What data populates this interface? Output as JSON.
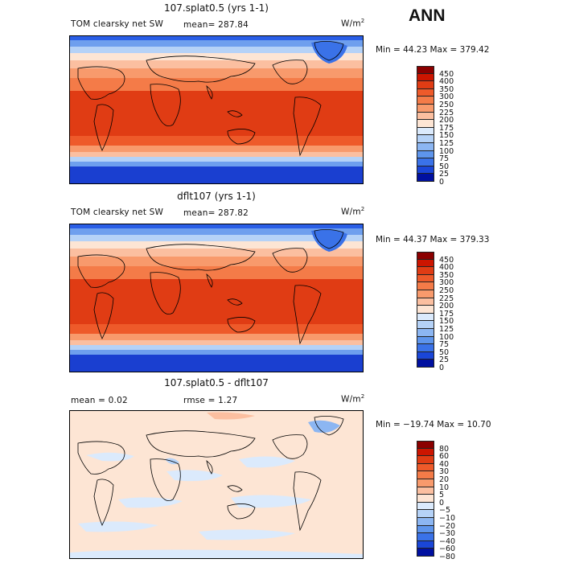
{
  "season": "ANN",
  "units_base": "W/m",
  "units_exp": "2",
  "panels": [
    {
      "title": "107.splat0.5 (yrs 1-1)",
      "variable": "TOM clearsky net SW",
      "stat_text": "mean= 287.84",
      "minmax": "Min =  44.23 Max = 379.42",
      "colorbar_labels": [
        "450",
        "400",
        "350",
        "300",
        "250",
        "225",
        "200",
        "175",
        "150",
        "125",
        "100",
        "75",
        "50",
        "25",
        "0"
      ],
      "colorbar_colors": [
        "#8b0000",
        "#cc1500",
        "#e03c14",
        "#ee5a2a",
        "#f47b48",
        "#f89a6c",
        "#fbbfa0",
        "#fde5d4",
        "#dbeafc",
        "#b5d2f7",
        "#8cb6f2",
        "#5e95ec",
        "#3a72e8",
        "#1a46d8",
        "#0010a0"
      ]
    },
    {
      "title": "dflt107 (yrs 1-1)",
      "variable": "TOM clearsky net SW",
      "stat_text": "mean= 287.82",
      "minmax": "Min =  44.37 Max = 379.33",
      "colorbar_labels": [
        "450",
        "400",
        "350",
        "300",
        "250",
        "225",
        "200",
        "175",
        "150",
        "125",
        "100",
        "75",
        "50",
        "25",
        "0"
      ],
      "colorbar_colors": [
        "#8b0000",
        "#cc1500",
        "#e03c14",
        "#ee5a2a",
        "#f47b48",
        "#f89a6c",
        "#fbbfa0",
        "#fde5d4",
        "#dbeafc",
        "#b5d2f7",
        "#8cb6f2",
        "#5e95ec",
        "#3a72e8",
        "#1a46d8",
        "#0010a0"
      ]
    },
    {
      "title": "107.splat0.5 - dflt107",
      "mean_text": "mean =    0.02",
      "rmse_text": "rmse =    1.27",
      "minmax": "Min = −19.74 Max =   10.70",
      "colorbar_labels": [
        "80",
        "60",
        "40",
        "30",
        "20",
        "10",
        "5",
        "0",
        "−5",
        "−10",
        "−20",
        "−30",
        "−40",
        "−60",
        "−80"
      ],
      "colorbar_colors": [
        "#8b0000",
        "#cc1500",
        "#e03c14",
        "#ee5a2a",
        "#f47b48",
        "#f89a6c",
        "#fbbfa0",
        "#fde5d4",
        "#dbeafc",
        "#b5d2f7",
        "#8cb6f2",
        "#5e95ec",
        "#3a72e8",
        "#1a46d8",
        "#0010a0"
      ]
    }
  ]
}
